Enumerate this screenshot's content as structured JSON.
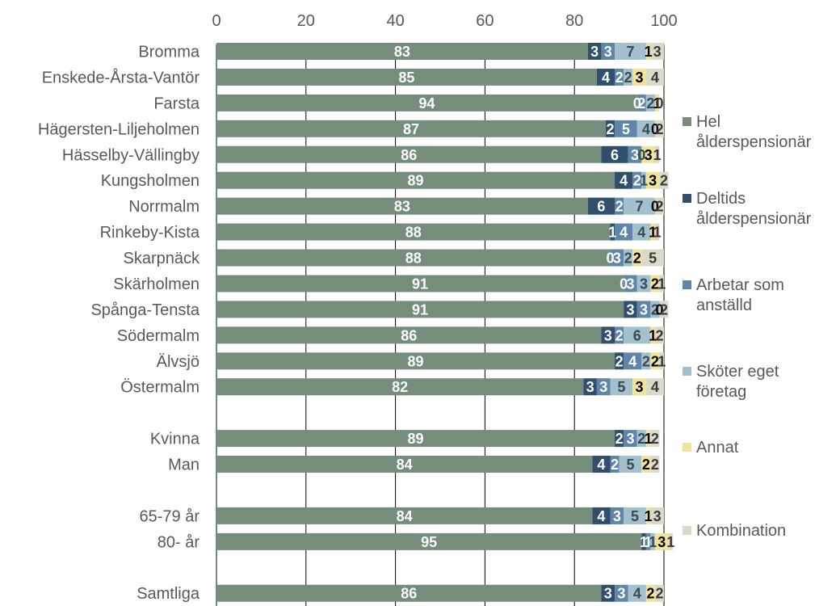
{
  "chart_data": {
    "type": "bar",
    "orientation": "horizontal",
    "stacked": true,
    "title": "",
    "xlabel": "",
    "ylabel": "",
    "xlim": [
      0,
      100
    ],
    "x_ticks": [
      0,
      20,
      40,
      60,
      80,
      100
    ],
    "x_tick_labels": [
      "0",
      "20",
      "40",
      "60",
      "80",
      "100"
    ],
    "grid": "vertical",
    "legend_position": "right",
    "categories": [
      "Bromma",
      "Enskede-Årsta-Vantör",
      "Farsta",
      "Hägersten-Liljeholmen",
      "Hässelby-Vällingby",
      "Kungsholmen",
      "Norrmalm",
      "Rinkeby-Kista",
      "Skarpnäck",
      "Skärholmen",
      "Spånga-Tensta",
      "Södermalm",
      "Älvsjö",
      "Östermalm",
      "",
      "Kvinna",
      "Man",
      "",
      "65-79 år",
      "80- år",
      "",
      "Samtliga"
    ],
    "series": [
      {
        "name": "Hel ålderspensionär",
        "color": "#758d7b",
        "values": [
          83,
          85,
          94,
          87,
          86,
          89,
          83,
          88,
          88,
          91,
          91,
          86,
          89,
          82,
          null,
          89,
          84,
          null,
          84,
          95,
          null,
          86
        ]
      },
      {
        "name": "Deltids ålderspensionär",
        "color": "#2f4f6b",
        "values": [
          3,
          4,
          0,
          2,
          6,
          4,
          6,
          1,
          0,
          0,
          3,
          3,
          2,
          3,
          null,
          2,
          4,
          null,
          4,
          1,
          null,
          3
        ]
      },
      {
        "name": "Arbetar som anställd",
        "color": "#5f86a8",
        "values": [
          3,
          2,
          2,
          5,
          3,
          2,
          2,
          4,
          3,
          3,
          3,
          2,
          4,
          3,
          null,
          3,
          2,
          null,
          3,
          1,
          null,
          3
        ]
      },
      {
        "name": "Sköter eget företag",
        "color": "#a3c0cd",
        "values": [
          7,
          2,
          2,
          4,
          0,
          1,
          7,
          4,
          2,
          3,
          2,
          6,
          2,
          5,
          null,
          2,
          5,
          null,
          5,
          1,
          null,
          4
        ]
      },
      {
        "name": "Annat",
        "color": "#f1e39a",
        "values": [
          1,
          3,
          1,
          0,
          3,
          3,
          0,
          1,
          2,
          2,
          0,
          1,
          2,
          3,
          null,
          1,
          2,
          null,
          1,
          3,
          null,
          2
        ]
      },
      {
        "name": "Kombination",
        "color": "#ddd8c8",
        "values": [
          3,
          4,
          0,
          2,
          1,
          2,
          2,
          1,
          5,
          1,
          2,
          2,
          1,
          4,
          null,
          2,
          2,
          null,
          3,
          1,
          null,
          2
        ]
      }
    ]
  },
  "legend": [
    {
      "lines": [
        "Hel",
        "ålderspensionär"
      ],
      "color": "#758d7b",
      "icon": "square-swatch"
    },
    {
      "lines": [
        "Deltids",
        "ålderspensionär"
      ],
      "color": "#2f4f6b",
      "icon": "square-swatch"
    },
    {
      "lines": [
        "Arbetar som",
        "anställd"
      ],
      "color": "#5f86a8",
      "icon": "square-swatch"
    },
    {
      "lines": [
        "Sköter eget",
        "företag"
      ],
      "color": "#a3c0cd",
      "icon": "square-swatch"
    },
    {
      "lines": [
        "Annat"
      ],
      "color": "#f1e39a",
      "icon": "square-swatch"
    },
    {
      "lines": [
        "Kombination"
      ],
      "color": "#ddd8c8",
      "icon": "square-swatch"
    }
  ]
}
